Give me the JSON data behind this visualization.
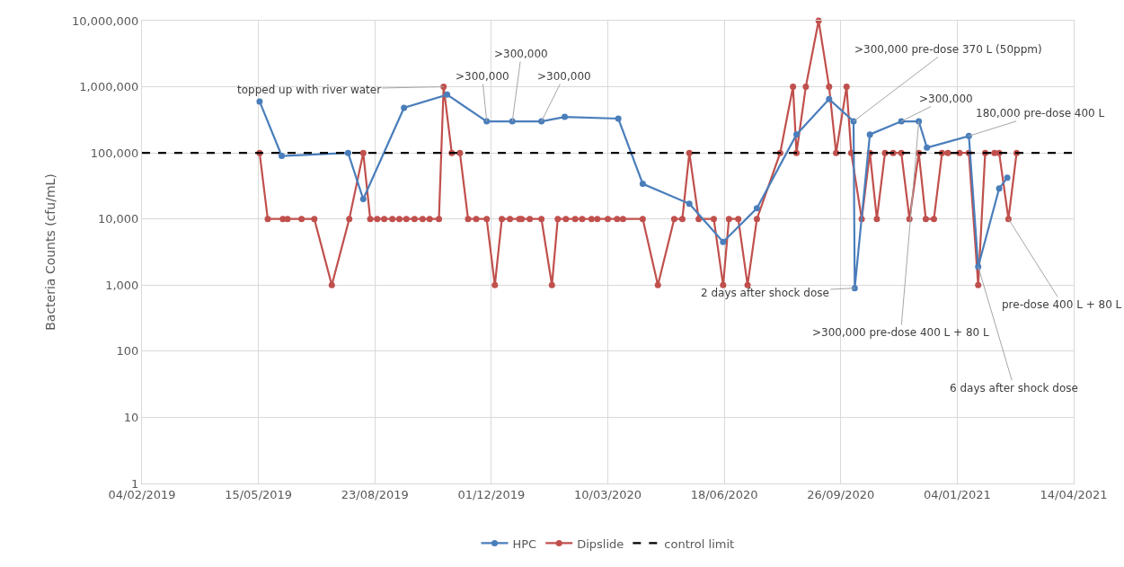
{
  "chart_data": {
    "type": "line",
    "ylabel": "Bacteria Counts (cfu/mL)",
    "log": "y",
    "grid": true,
    "legend": "bottom",
    "marker": "circle",
    "line_style": "solid",
    "xlim": [
      "2019-02-04",
      "2021-04-14"
    ],
    "xticks": [
      {
        "value": "2019-02-04",
        "label": "04/02/2019"
      },
      {
        "value": "2019-05-15",
        "label": "15/05/2019"
      },
      {
        "value": "2019-08-23",
        "label": "23/08/2019"
      },
      {
        "value": "2019-12-01",
        "label": "01/12/2019"
      },
      {
        "value": "2020-03-10",
        "label": "10/03/2020"
      },
      {
        "value": "2020-06-18",
        "label": "18/06/2020"
      },
      {
        "value": "2020-09-26",
        "label": "26/09/2020"
      },
      {
        "value": "2021-01-04",
        "label": "04/01/2021"
      },
      {
        "value": "2021-04-14",
        "label": "14/04/2021"
      }
    ],
    "ylim": [
      1,
      10000000
    ],
    "yticks": [
      1,
      10,
      100,
      {
        "value": 1000,
        "label": "1,000"
      },
      {
        "value": 10000,
        "label": "10,000"
      },
      {
        "value": 100000,
        "label": "100,000"
      },
      {
        "value": 1000000,
        "label": "1,000,000"
      },
      {
        "value": 10000000,
        "label": "10,000,000"
      }
    ],
    "series": [
      {
        "name": "HPC",
        "color": "#4a7ebb",
        "x": [
          "2019-05-16",
          "2019-06-04",
          "2019-07-31",
          "2019-08-13",
          "2019-09-17",
          "2019-10-24",
          "2019-11-27",
          "2019-12-19",
          "2020-01-13",
          "2020-02-02",
          "2020-03-19",
          "2020-04-09",
          "2020-05-19",
          "2020-06-17",
          "2020-07-16",
          "2020-08-19",
          "2020-09-16",
          "2020-10-07",
          "2020-10-08",
          "2020-10-21",
          "2020-11-17",
          "2020-12-02",
          "2020-12-09",
          "2021-01-14",
          "2021-01-22",
          "2021-02-09",
          "2021-02-16"
        ],
        "values": [
          600000,
          90000,
          100000,
          20000,
          480000,
          760000,
          300000,
          300000,
          300000,
          350000,
          330000,
          34000,
          17000,
          4500,
          14500,
          190000,
          650000,
          300000,
          900,
          190000,
          300000,
          300000,
          120000,
          180000,
          1900,
          29000,
          42000
        ]
      },
      {
        "name": "Dipslide",
        "color": "#c0504d",
        "x": [
          "2019-05-16",
          "2019-05-23",
          "2019-06-05",
          "2019-06-09",
          "2019-06-21",
          "2019-07-02",
          "2019-07-17",
          "2019-08-01",
          "2019-08-13",
          "2019-08-19",
          "2019-08-25",
          "2019-08-31",
          "2019-09-07",
          "2019-09-13",
          "2019-09-19",
          "2019-09-26",
          "2019-10-03",
          "2019-10-09",
          "2019-10-17",
          "2019-10-21",
          "2019-10-28",
          "2019-11-04",
          "2019-11-11",
          "2019-11-18",
          "2019-11-27",
          "2019-12-04",
          "2019-12-10",
          "2019-12-17",
          "2019-12-25",
          "2019-12-27",
          "2020-01-03",
          "2020-01-13",
          "2020-01-22",
          "2020-01-27",
          "2020-02-03",
          "2020-02-11",
          "2020-02-17",
          "2020-02-25",
          "2020-03-01",
          "2020-03-10",
          "2020-03-18",
          "2020-03-23",
          "2020-04-09",
          "2020-04-22",
          "2020-05-06",
          "2020-05-13",
          "2020-05-19",
          "2020-05-27",
          "2020-06-09",
          "2020-06-17",
          "2020-06-22",
          "2020-06-30",
          "2020-07-08",
          "2020-07-16",
          "2020-08-05",
          "2020-08-16",
          "2020-08-19",
          "2020-08-27",
          "2020-09-07",
          "2020-09-16",
          "2020-09-22",
          "2020-10-01",
          "2020-10-05",
          "2020-10-14",
          "2020-10-21",
          "2020-10-27",
          "2020-11-03",
          "2020-11-10",
          "2020-11-17",
          "2020-11-24",
          "2020-12-02",
          "2020-12-08",
          "2020-12-15",
          "2020-12-22",
          "2020-12-27",
          "2021-01-06",
          "2021-01-14",
          "2021-01-22",
          "2021-01-28",
          "2021-02-05",
          "2021-02-09",
          "2021-02-17",
          "2021-02-24"
        ],
        "values": [
          100000,
          10000,
          10000,
          10000,
          10000,
          10000,
          1000,
          10000,
          100000,
          10000,
          10000,
          10000,
          10000,
          10000,
          10000,
          10000,
          10000,
          10000,
          10000,
          1000000,
          100000,
          100000,
          10000,
          10000,
          10000,
          1000,
          10000,
          10000,
          10000,
          10000,
          10000,
          10000,
          1000,
          10000,
          10000,
          10000,
          10000,
          10000,
          10000,
          10000,
          10000,
          10000,
          10000,
          1000,
          10000,
          10000,
          100000,
          10000,
          10000,
          1000,
          10000,
          10000,
          1000,
          10000,
          100000,
          1000000,
          100000,
          1000000,
          10000000,
          1000000,
          100000,
          1000000,
          100000,
          10000,
          100000,
          10000,
          100000,
          100000,
          100000,
          10000,
          100000,
          10000,
          10000,
          100000,
          100000,
          100000,
          100000,
          1000,
          100000,
          100000,
          100000,
          10000,
          100000
        ]
      }
    ],
    "ref_lines": [
      {
        "axis": "y",
        "value": 100000,
        "label": "control limit",
        "color": "#000000",
        "line_style": "dashed"
      }
    ],
    "annotations": [
      {
        "text": "topped up with river water",
        "x": "2019-10-21",
        "y": 1000000
      },
      {
        "text": ">300,000",
        "x": "2019-11-27",
        "y": 300000
      },
      {
        "text": ">300,000",
        "x": "2019-12-19",
        "y": 300000
      },
      {
        "text": ">300,000",
        "x": "2020-01-13",
        "y": 300000
      },
      {
        "text": ">300,000 pre-dose 370 L (50ppm)",
        "x": "2020-10-07",
        "y": 300000
      },
      {
        "text": "2 days after shock dose",
        "x": "2020-10-08",
        "y": 900
      },
      {
        "text": ">300,000",
        "x": "2020-11-17",
        "y": 300000
      },
      {
        "text": ">300,000 pre-dose 400 L + 80 L",
        "x": "2020-12-02",
        "y": 300000
      },
      {
        "text": "180,000 pre-dose 400 L",
        "x": "2021-01-14",
        "y": 180000
      },
      {
        "text": "6 days after shock dose",
        "x": "2021-01-22",
        "y": 1900
      },
      {
        "text": "pre-dose 400 L + 80 L",
        "x": "2021-02-17",
        "y": 10000
      }
    ]
  }
}
